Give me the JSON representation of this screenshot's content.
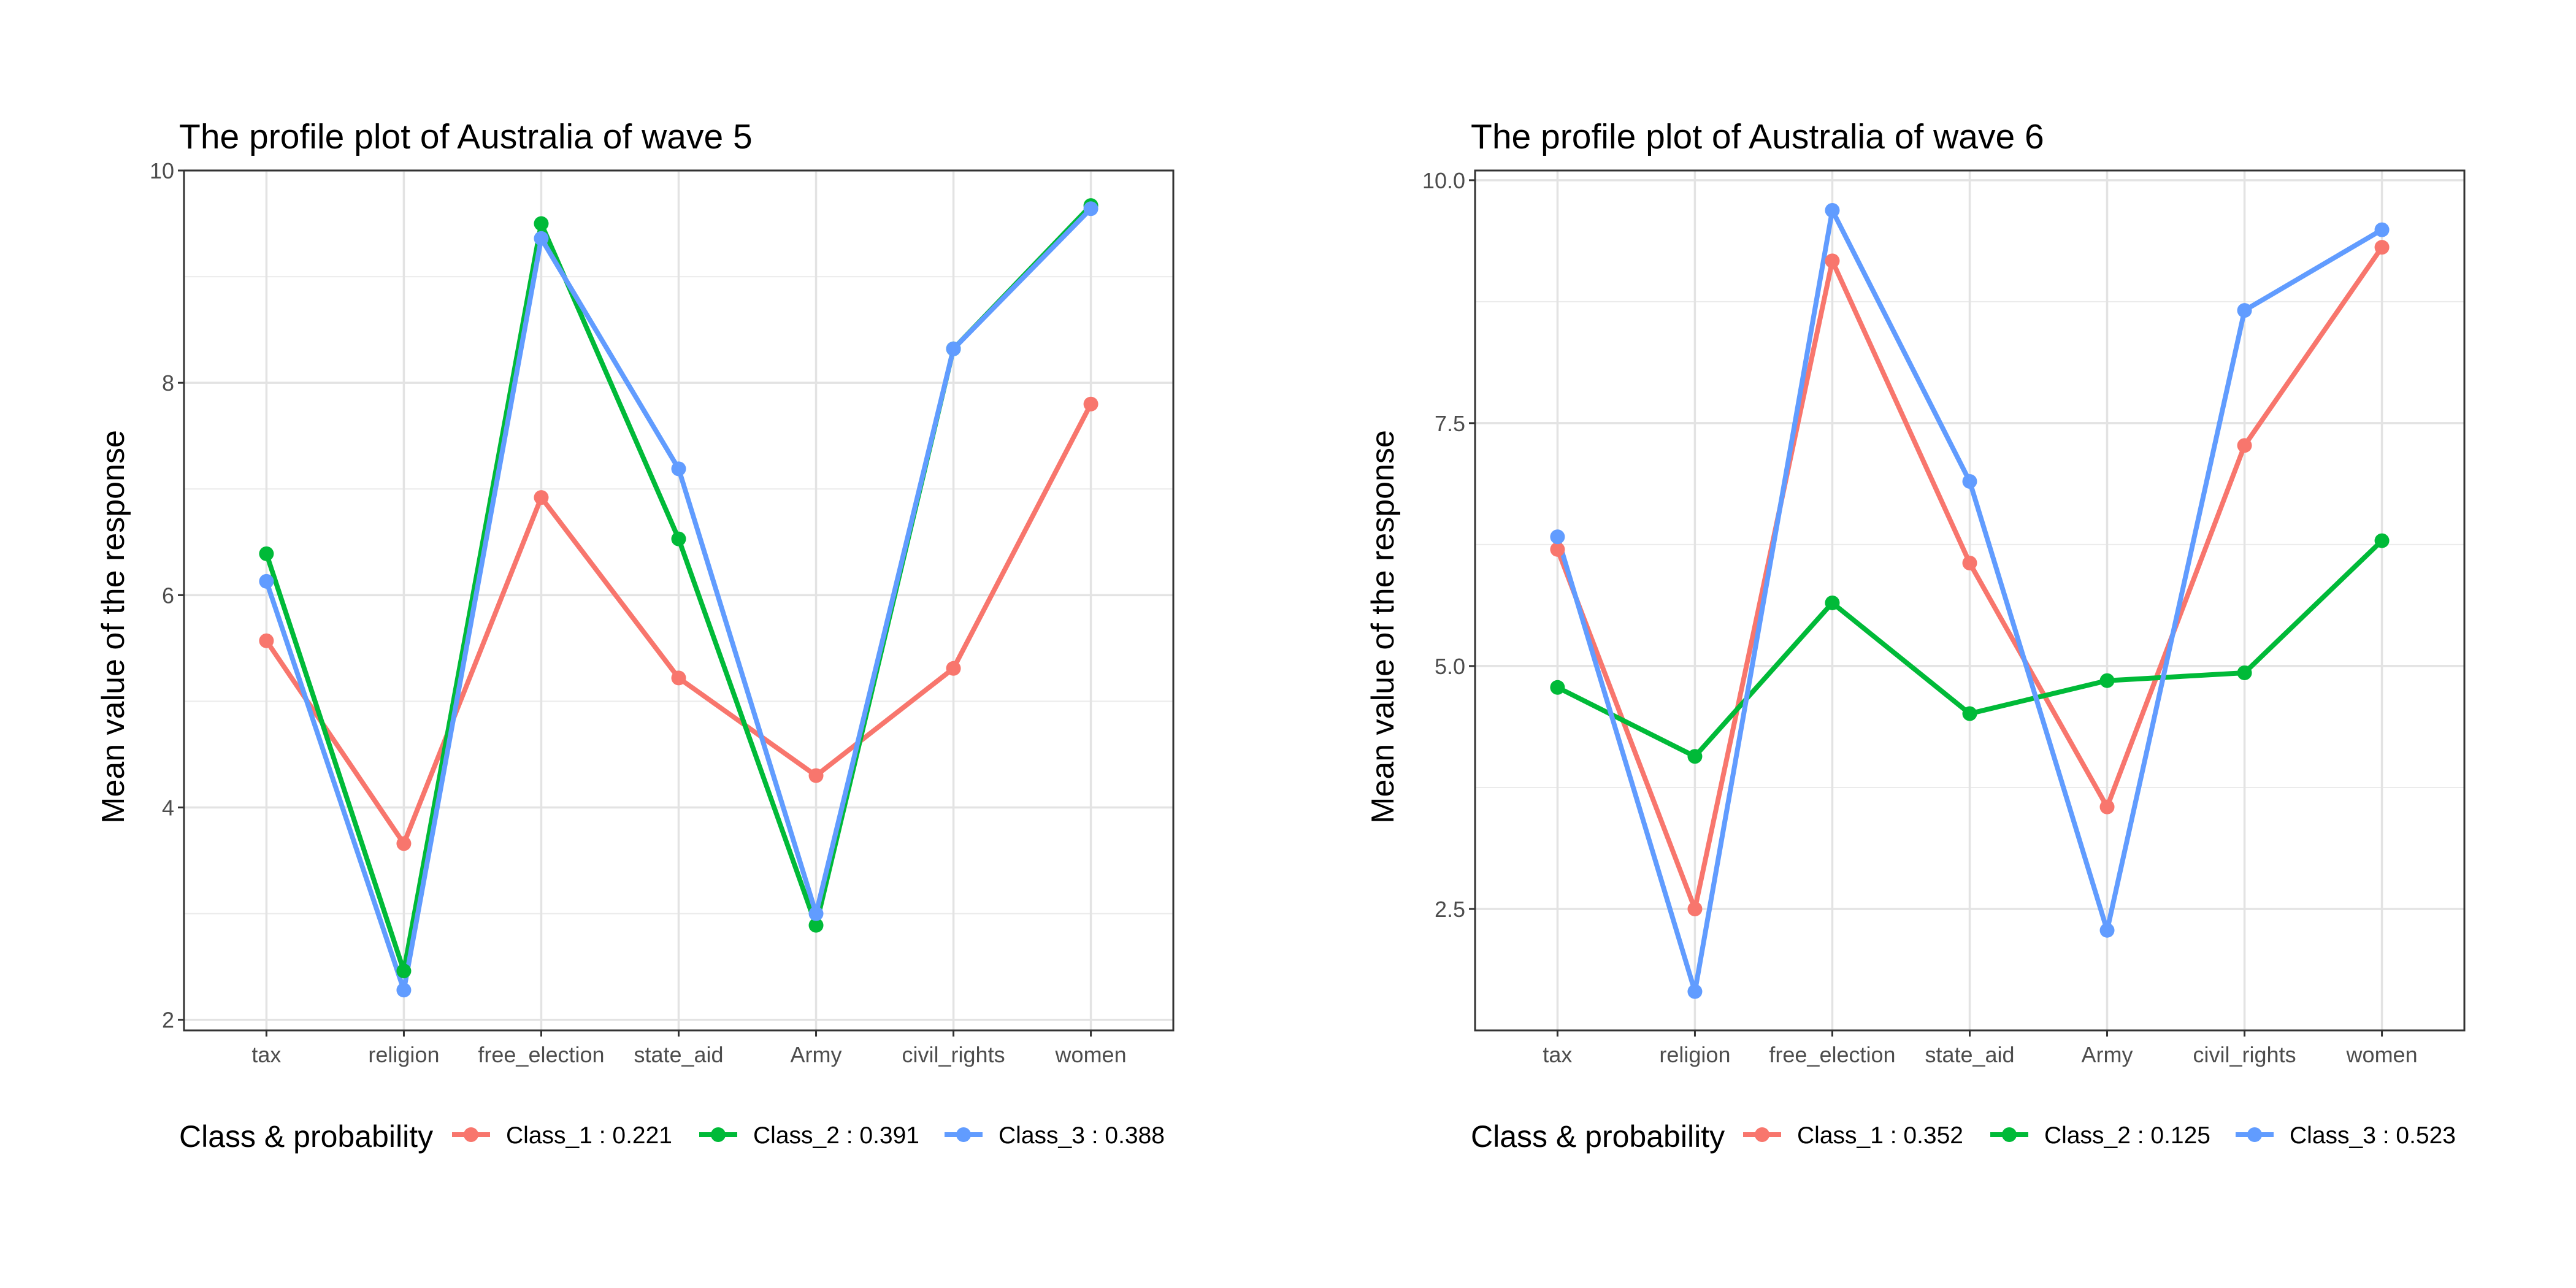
{
  "legend": {
    "title": "Class & probability"
  },
  "colors": {
    "Class_1": "#F8766D",
    "Class_2": "#00BA38",
    "Class_3": "#619CFF"
  },
  "chart_data": [
    {
      "type": "line",
      "title": "The profile plot of Australia of wave 5",
      "xlabel": "",
      "ylabel": "Mean value of the response",
      "categories": [
        "tax",
        "religion",
        "free_election",
        "state_aid",
        "Army",
        "civil_rights",
        "women"
      ],
      "ylim": [
        1.9,
        10.0
      ],
      "yticks": [
        2,
        4,
        6,
        8,
        10
      ],
      "ytick_labels": [
        "2",
        "4",
        "6",
        "8",
        "10"
      ],
      "grid": true,
      "legend_position": "bottom",
      "series": [
        {
          "name": "Class_1 : 0.221",
          "color": "#F8766D",
          "values": [
            5.57,
            3.66,
            6.92,
            5.22,
            4.3,
            5.31,
            7.8
          ]
        },
        {
          "name": "Class_2 : 0.391",
          "color": "#00BA38",
          "values": [
            6.39,
            2.46,
            9.5,
            6.53,
            2.89,
            8.32,
            9.67
          ]
        },
        {
          "name": "Class_3 : 0.388",
          "color": "#619CFF",
          "values": [
            6.13,
            2.28,
            9.36,
            7.19,
            3.0,
            8.32,
            9.64
          ]
        }
      ]
    },
    {
      "type": "line",
      "title": "The profile plot of Australia of wave 6",
      "xlabel": "",
      "ylabel": "Mean value of the response",
      "categories": [
        "tax",
        "religion",
        "free_election",
        "state_aid",
        "Army",
        "civil_rights",
        "women"
      ],
      "ylim": [
        1.25,
        10.1
      ],
      "yticks": [
        2.5,
        5.0,
        7.5,
        10.0
      ],
      "ytick_labels": [
        "2.5",
        "5.0",
        "7.5",
        "10.0"
      ],
      "grid": true,
      "legend_position": "bottom",
      "series": [
        {
          "name": "Class_1 : 0.352",
          "color": "#F8766D",
          "values": [
            6.2,
            2.5,
            9.17,
            6.06,
            3.55,
            7.27,
            9.31
          ]
        },
        {
          "name": "Class_2 : 0.125",
          "color": "#00BA38",
          "values": [
            4.78,
            4.07,
            5.65,
            4.51,
            4.85,
            4.93,
            6.29
          ]
        },
        {
          "name": "Class_3 : 0.523",
          "color": "#619CFF",
          "values": [
            6.33,
            1.65,
            9.69,
            6.9,
            2.28,
            8.66,
            9.49
          ]
        }
      ]
    }
  ]
}
